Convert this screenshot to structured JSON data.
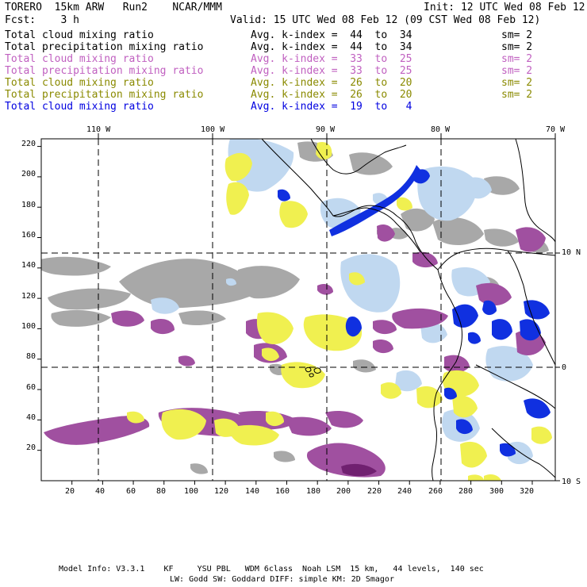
{
  "header": {
    "model": "TORERO  15km ARW   Run2    NCAR/MMM",
    "init": "Init: 12 UTC Wed 08 Feb 12",
    "fcst": "Fcst:    3 h",
    "valid": "Valid: 15 UTC Wed 08 Feb 12 (09 CST Wed 08 Feb 12)"
  },
  "legend": [
    {
      "field": "Total cloud mixing ratio",
      "kindex": "Avg. k-index =  44  to  34",
      "sm": "sm= 2",
      "color": "#000000"
    },
    {
      "field": "Total precipitation mixing ratio",
      "kindex": "Avg. k-index =  44  to  34",
      "sm": "sm= 2",
      "color": "#000000"
    },
    {
      "field": "Total cloud mixing ratio",
      "kindex": "Avg. k-index =  33  to  25",
      "sm": "sm= 2",
      "color": "#c060c0"
    },
    {
      "field": "Total precipitation mixing ratio",
      "kindex": "Avg. k-index =  33  to  25",
      "sm": "sm= 2",
      "color": "#c060c0"
    },
    {
      "field": "Total cloud mixing ratio",
      "kindex": "Avg. k-index =  26  to  20",
      "sm": "sm= 2",
      "color": "#8a8a00"
    },
    {
      "field": "Total precipitation mixing ratio",
      "kindex": "Avg. k-index =  26  to  20",
      "sm": "sm= 2",
      "color": "#8a8a00"
    },
    {
      "field": "Total cloud mixing ratio",
      "kindex": "Avg. k-index =  19  to   4",
      "sm": "",
      "color": "#0000e0"
    }
  ],
  "map": {
    "lon_labels": [
      "110 W",
      "100 W",
      "90 W",
      "80 W",
      "70 W"
    ],
    "lat_labels": [
      "10 N",
      "0",
      "10 S"
    ],
    "y_ticks": [
      "220",
      "200",
      "180",
      "160",
      "140",
      "120",
      "100",
      "80",
      "60",
      "40",
      "20"
    ],
    "x_ticks": [
      "20",
      "40",
      "60",
      "80",
      "100",
      "120",
      "140",
      "160",
      "180",
      "200",
      "220",
      "240",
      "260",
      "280",
      "300",
      "320"
    ],
    "grid_range": {
      "x": [
        0,
        335
      ],
      "y": [
        0,
        225
      ]
    },
    "colors": {
      "gray": "#a8a8a8",
      "purple": "#a050a0",
      "dark_purple": "#702070",
      "yellow": "#f0f050",
      "light_blue": "#c0d8f0",
      "blue": "#1030e0"
    }
  },
  "footer": {
    "line1": "Model Info: V3.3.1    KF     YSU PBL   WDM 6class  Noah LSM  15 km,   44 levels,  140 sec",
    "line2": "LW: Godd SW: Goddard DIFF: simple KM: 2D Smagor"
  }
}
